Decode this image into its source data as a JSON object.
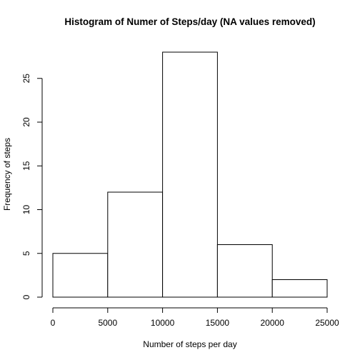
{
  "chart_data": {
    "type": "bar",
    "histogram": true,
    "title": "Histogram of Numer of Steps/day (NA values removed)",
    "xlabel": "Number of steps per day",
    "ylabel": "Frequency of steps",
    "bins": [
      {
        "from": 0,
        "to": 5000,
        "count": 5
      },
      {
        "from": 5000,
        "to": 10000,
        "count": 12
      },
      {
        "from": 10000,
        "to": 15000,
        "count": 28
      },
      {
        "from": 15000,
        "to": 20000,
        "count": 6
      },
      {
        "from": 20000,
        "to": 25000,
        "count": 2
      }
    ],
    "xlim": [
      0,
      25000
    ],
    "ylim": [
      0,
      28
    ],
    "x_ticks": [
      0,
      5000,
      10000,
      15000,
      20000,
      25000
    ],
    "x_tick_labels": [
      "0",
      "5000",
      "10000",
      "15000",
      "20000",
      "25000"
    ],
    "y_ticks": [
      0,
      5,
      10,
      15,
      20,
      25
    ],
    "y_tick_labels": [
      "0",
      "5",
      "10",
      "15",
      "20",
      "25"
    ],
    "grid": false,
    "legend": "none",
    "bar_fill": "#ffffff",
    "bar_stroke": "#000000"
  }
}
